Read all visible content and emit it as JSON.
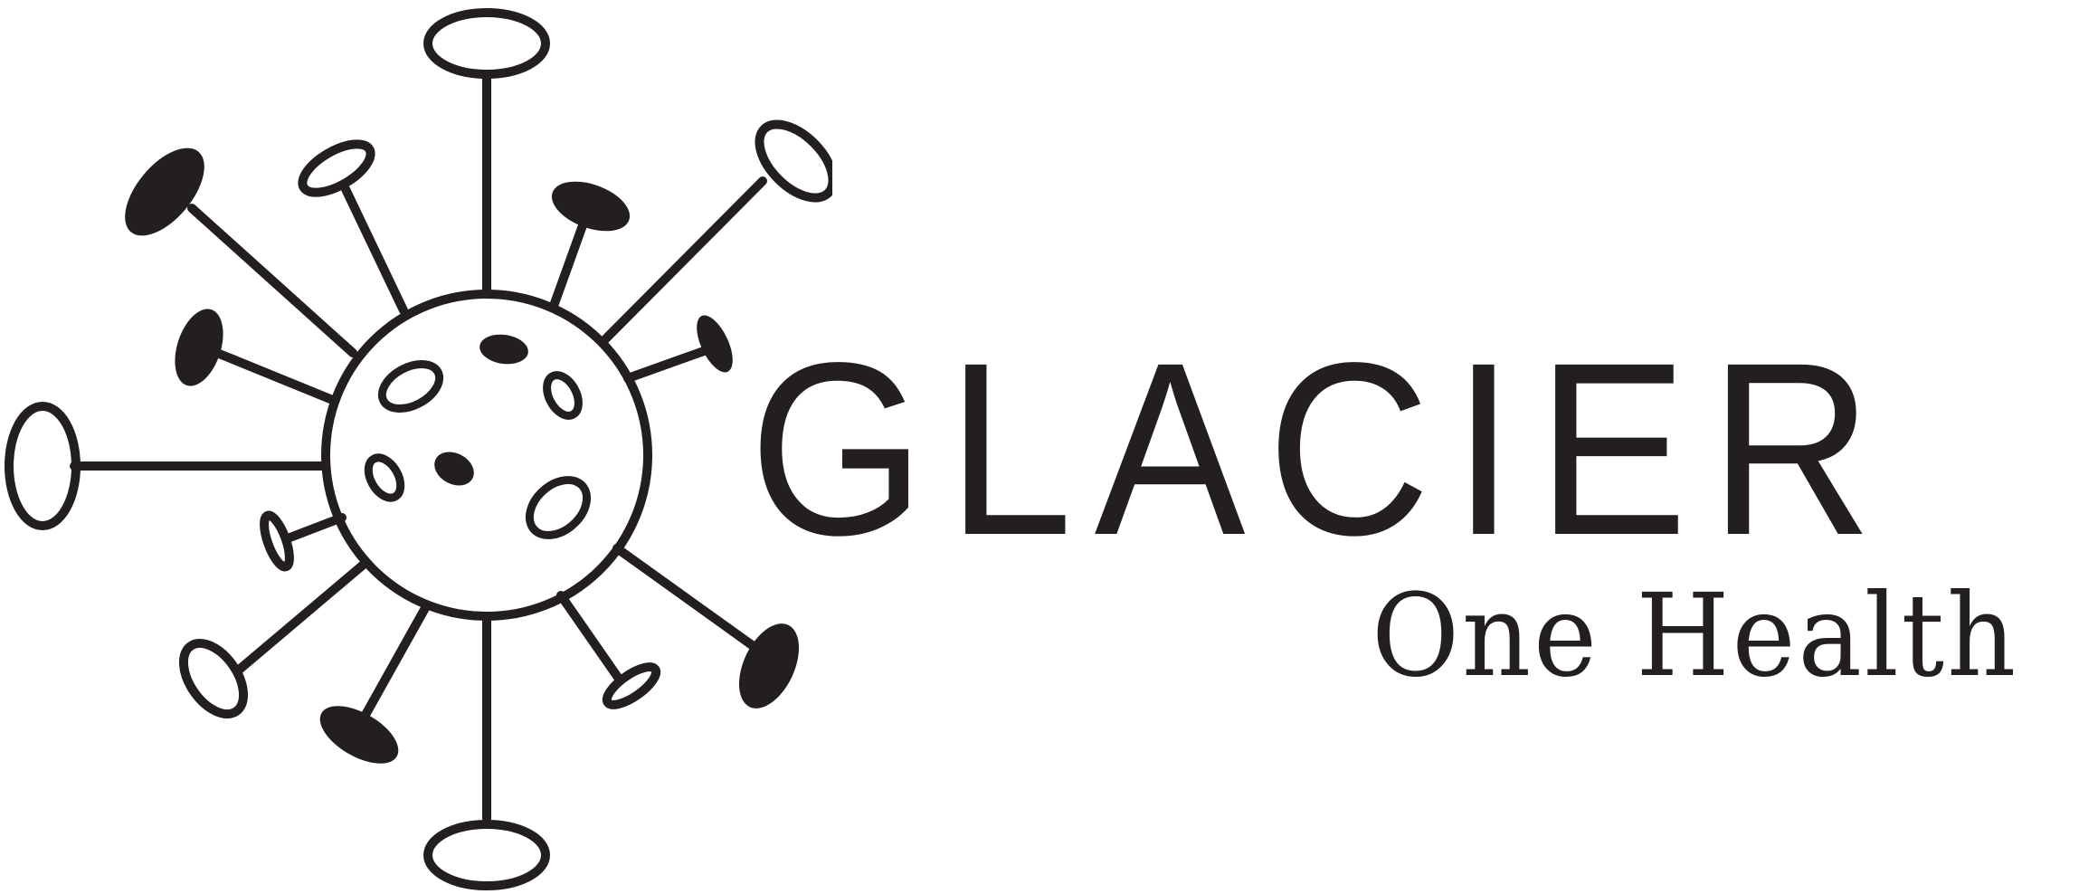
{
  "brand": {
    "name": "GLACIER",
    "tagline": "One Health",
    "ink_color": "#231f20",
    "background_color": "#ffffff"
  },
  "logo_mark": {
    "icon": "virus-icon",
    "description_id": "virus-particle-with-spikes"
  }
}
